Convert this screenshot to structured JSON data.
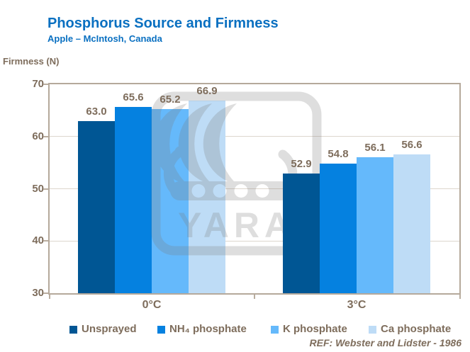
{
  "header": {
    "title": "Phosphorus Source and Firmness",
    "subtitle": "Apple – McIntosh, Canada"
  },
  "watermark": {
    "text": "YARA"
  },
  "footer": {
    "ref_label": "REF: Webster and Lidster - 1986"
  },
  "palette": {
    "title_blue": "#0a70c1",
    "text_taupe": "#7e6d5c",
    "axis_taupe": "#b5a99b",
    "gridline": "#ddd6cd",
    "watermark_gray": "#7a7a7a",
    "background": "#ffffff"
  },
  "chart_data": {
    "type": "bar",
    "title": "Phosphorus Source and Firmness",
    "subtitle": "Apple – McIntosh, Canada",
    "ylabel": "Firmness (N)",
    "ylim": [
      30,
      70
    ],
    "yticks": [
      70,
      60,
      50,
      40,
      30
    ],
    "grid": "horizontal",
    "legend_position": "bottom",
    "value_labels": true,
    "categories": [
      "0°C",
      "3°C"
    ],
    "series": [
      {
        "name": "Unsprayed",
        "color": "#005694",
        "values": [
          63.0,
          52.9
        ]
      },
      {
        "name": "NH₄ phosphate",
        "color": "#0581e0",
        "values": [
          65.6,
          54.8
        ]
      },
      {
        "name": "K phosphate",
        "color": "#65b9fb",
        "values": [
          65.2,
          56.1
        ]
      },
      {
        "name": "Ca phosphate",
        "color": "#bedcf6",
        "values": [
          66.9,
          56.6
        ]
      }
    ],
    "ref": "REF: Webster and Lidster - 1986"
  }
}
